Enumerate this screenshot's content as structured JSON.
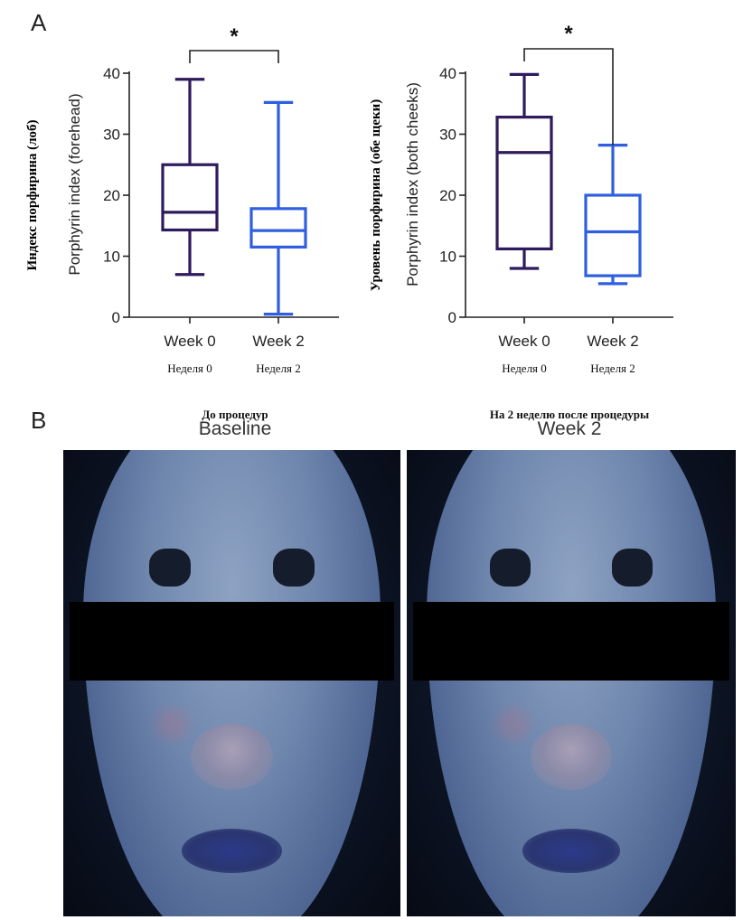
{
  "panels": {
    "a_label": "A",
    "b_label": "B"
  },
  "chart_data": [
    {
      "type": "box",
      "ylabel_ru": "Индекс порфирина (лоб)",
      "ylabel": "Porphyrin index (forehead)",
      "ylim": [
        0,
        40
      ],
      "yticks": [
        0,
        10,
        20,
        30,
        40
      ],
      "categories": [
        "Week 0",
        "Week 2"
      ],
      "categories_ru": [
        "Неделя 0",
        "Неделя 2"
      ],
      "boxes": [
        {
          "min": 7,
          "q1": 14.3,
          "median": 17.2,
          "q3": 25,
          "max": 39,
          "color": "#2e1a5c"
        },
        {
          "min": 0.5,
          "q1": 11.5,
          "median": 14.2,
          "q3": 17.8,
          "max": 35.2,
          "color": "#2f5fe0"
        }
      ],
      "significance": "*"
    },
    {
      "type": "box",
      "ylabel_ru": "Уровень порфирина (обе щеки)",
      "ylabel": "Porphyrin  index (both cheeks)",
      "ylim": [
        0,
        40
      ],
      "yticks": [
        0,
        10,
        20,
        30,
        40
      ],
      "categories": [
        "Week 0",
        "Week 2"
      ],
      "categories_ru": [
        "Неделя 0",
        "Неделя 2"
      ],
      "boxes": [
        {
          "min": 8,
          "q1": 11.2,
          "median": 27,
          "q3": 32.8,
          "max": 39.8,
          "color": "#2e1a5c"
        },
        {
          "min": 5.5,
          "q1": 6.8,
          "median": 14,
          "q3": 20,
          "max": 28.2,
          "color": "#2f5fe0"
        }
      ],
      "significance": "*"
    }
  ],
  "photos": {
    "left": {
      "title_ru": "До процедур",
      "title_en": "Baseline"
    },
    "right": {
      "title_ru": "На 2 неделю после процедуры",
      "title_en": "Week 2"
    }
  }
}
